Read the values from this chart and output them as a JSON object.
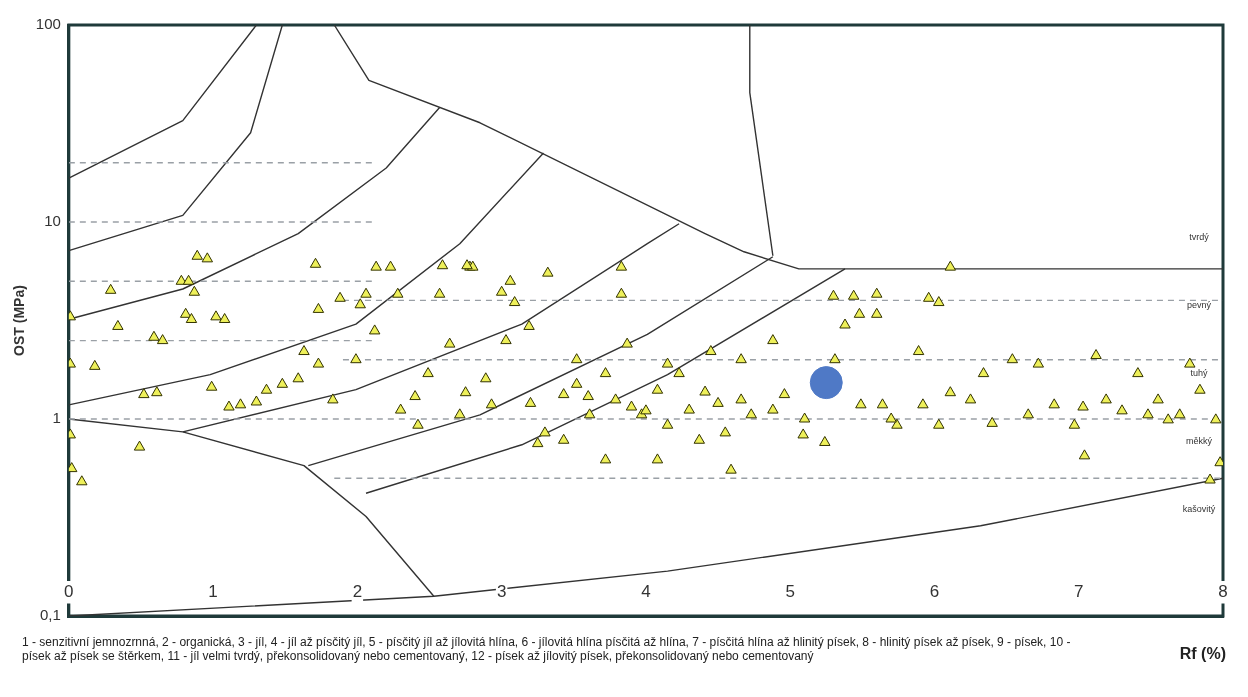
{
  "chart_data": {
    "type": "scatter",
    "ylabel": "OST (MPa)",
    "xlabel": "Rf (%)",
    "log": "y",
    "xlim": [
      0,
      8
    ],
    "ylim": [
      0.1,
      100
    ],
    "xticks": [
      0,
      1,
      2,
      3,
      4,
      5,
      6,
      7,
      8
    ],
    "yticks": [
      {
        "value": 0.1,
        "label": "0,1"
      },
      1,
      10,
      100
    ],
    "grid": false,
    "annotations": [
      "1 - senzitivní jemnozrnná, 2 - organická, 3 - jíl, 4 - jíl až písčitý jíl, 5 - písčitý jíl až jílovitá hlína, 6 - jílovitá hlína písčitá až hlína, 7 - písčitá hlína až hlinitý písek, 8 - hlinitý písek až písek, 9 - písek, 10 - písek až písek se štěrkem, 11 - jíl velmi tvrdý, překonsolidovaný nebo cementovaný, 12 - písek až jílovitý písek, překonsolidovaný nebo cementovaný",
      "tvrdý",
      "pevný",
      "tuhý",
      "měkký",
      "kašovitý"
    ],
    "series": [
      {
        "type": "line",
        "color": "#9aa0a6",
        "line_style": "dashed",
        "marker": "none",
        "x": [
          0,
          2.1
        ],
        "values": [
          20,
          20
        ]
      },
      {
        "type": "line",
        "color": "#9aa0a6",
        "line_style": "dashed",
        "marker": "none",
        "x": [
          0,
          2.1
        ],
        "values": [
          10,
          10
        ]
      },
      {
        "type": "line",
        "color": "#9aa0a6",
        "line_style": "dashed",
        "marker": "none",
        "x": [
          0,
          2.1
        ],
        "values": [
          5,
          5
        ]
      },
      {
        "type": "line",
        "color": "#9aa0a6",
        "line_style": "dashed",
        "marker": "none",
        "x": [
          0,
          2.1
        ],
        "values": [
          2.5,
          2.5
        ]
      },
      {
        "type": "line",
        "color": "#9aa0a6",
        "line_style": "dashed",
        "marker": "none",
        "x": [
          0,
          8
        ],
        "values": [
          1,
          1
        ]
      },
      {
        "type": "line",
        "color": "#9aa0a6",
        "line_style": "dashed",
        "marker": "none",
        "x": [
          1.9,
          8
        ],
        "values": [
          4,
          4
        ]
      },
      {
        "type": "line",
        "color": "#9aa0a6",
        "line_style": "dashed",
        "marker": "none",
        "x": [
          1.9,
          8
        ],
        "values": [
          2,
          2
        ]
      },
      {
        "type": "line",
        "color": "#9aa0a6",
        "line_style": "dashed",
        "marker": "none",
        "x": [
          1.84,
          8
        ],
        "values": [
          0.5,
          0.5
        ]
      },
      {
        "type": "line",
        "color": "#333333",
        "line_style": "solid",
        "marker": "none",
        "x": [
          0,
          0.79,
          1.3
        ],
        "values": [
          16.7,
          32.7,
          100
        ]
      },
      {
        "type": "line",
        "color": "#333333",
        "line_style": "solid",
        "marker": "none",
        "x": [
          0,
          0.79,
          1.26,
          1.48
        ],
        "values": [
          7.15,
          10.8,
          28.4,
          100
        ]
      },
      {
        "type": "line",
        "color": "#333333",
        "line_style": "solid",
        "marker": "none",
        "x": [
          1.84,
          2.08,
          2.85,
          4.41,
          4.68,
          5.06,
          8
        ],
        "values": [
          100,
          52.3,
          31.9,
          8.73,
          7.06,
          5.78,
          5.78
        ]
      },
      {
        "type": "line",
        "color": "#333333",
        "line_style": "solid",
        "marker": "none",
        "x": [
          4.72,
          4.72,
          4.88
        ],
        "values": [
          100,
          45.4,
          6.74
        ]
      },
      {
        "type": "line",
        "color": "#333333",
        "line_style": "solid",
        "marker": "none",
        "x": [
          0,
          0.79,
          1.59,
          2.2,
          2.57
        ],
        "values": [
          3.21,
          4.57,
          8.73,
          18.8,
          38.1
        ]
      },
      {
        "type": "line",
        "color": "#333333",
        "line_style": "solid",
        "marker": "none",
        "x": [
          0,
          0.98,
          1.99,
          2.71,
          3.29
        ],
        "values": [
          1.18,
          1.68,
          3.03,
          7.76,
          22.4
        ]
      },
      {
        "type": "line",
        "color": "#333333",
        "line_style": "solid",
        "marker": "none",
        "x": [
          0.79,
          1.99,
          3.14,
          4.01,
          4.23
        ],
        "values": [
          0.86,
          1.41,
          3.03,
          7.76,
          9.8
        ]
      },
      {
        "type": "line",
        "color": "#333333",
        "line_style": "solid",
        "marker": "none",
        "x": [
          1.66,
          2.85,
          4.01,
          4.88
        ],
        "values": [
          0.58,
          1.05,
          2.69,
          6.66
        ]
      },
      {
        "type": "line",
        "color": "#333333",
        "line_style": "solid",
        "marker": "none",
        "x": [
          2.06,
          3.14,
          4.15,
          5.38
        ],
        "values": [
          0.42,
          0.74,
          1.68,
          5.78
        ]
      },
      {
        "type": "line",
        "color": "#333333",
        "line_style": "solid",
        "marker": "none",
        "x": [
          0,
          0.79,
          1.63,
          2.06,
          2.53
        ],
        "values": [
          1,
          0.86,
          0.58,
          0.32,
          0.126
        ]
      },
      {
        "type": "line",
        "color": "#333333",
        "line_style": "solid",
        "marker": "none",
        "x": [
          0,
          2.53,
          4.15,
          6.32,
          8
        ],
        "values": [
          0.1,
          0.126,
          0.169,
          0.287,
          0.5
        ]
      },
      {
        "color": "#eef05a",
        "marker": "triangle",
        "x": [
          0.01,
          0.01,
          0.01,
          0.02,
          0.09,
          0.18,
          0.29,
          0.34,
          0.49,
          0.52,
          0.59,
          0.61,
          0.65,
          0.78,
          0.81,
          0.83,
          0.85,
          0.89,
          0.96,
          1.02,
          1.08,
          0.99,
          0.87,
          1.11,
          1.19,
          1.3,
          1.37,
          1.48,
          1.59,
          1.63,
          1.73,
          1.71,
          1.73,
          1.83,
          1.99,
          2.02,
          2.13,
          2.12,
          2.28,
          2.3,
          2.42,
          2.49,
          2.57,
          2.64,
          2.71,
          2.75,
          2.78,
          2.8,
          2.89,
          2.93,
          3.03,
          3.06,
          3.09,
          3.19,
          3.25,
          3.32,
          3.43,
          3.52,
          3.61,
          3.72,
          3.79,
          3.83,
          3.87,
          3.97,
          4.08,
          4.15,
          4.23,
          4.3,
          4.41,
          4.45,
          4.55,
          4.66,
          4.73,
          4.88,
          4.88,
          4.96,
          5.09,
          5.31,
          5.38,
          5.49,
          5.6,
          5.64,
          5.74,
          5.89,
          5.92,
          6.03,
          6.11,
          6.25,
          6.34,
          6.54,
          6.65,
          6.72,
          6.83,
          6.97,
          7.04,
          7.12,
          7.19,
          7.41,
          7.48,
          7.55,
          7.62,
          7.7,
          7.77,
          7.84,
          7.91,
          7.95,
          7.98,
          4.59,
          4.66,
          5.24,
          5.6,
          5.96,
          6.03,
          3.43,
          3.72,
          4.15,
          4.37,
          4.08,
          2.23,
          1.88,
          2.06,
          3.83,
          5.3,
          5.44,
          6.11,
          5.48,
          7.03,
          3.0,
          2.59,
          2.76,
          3.52,
          2.4,
          3.2,
          3.6,
          4.0,
          4.5,
          5.1,
          5.7,
          6.4,
          7.3,
          3.9,
          3.3
        ],
        "values": [
          3.3,
          1.9,
          0.83,
          0.56,
          0.48,
          1.85,
          4.5,
          2.95,
          0.72,
          1.33,
          2.6,
          1.36,
          2.5,
          5.0,
          3.4,
          5.0,
          3.2,
          6.7,
          6.5,
          3.3,
          3.2,
          1.45,
          4.4,
          1.15,
          1.18,
          1.22,
          1.4,
          1.5,
          1.6,
          2.2,
          1.9,
          6.1,
          3.6,
          1.25,
          2.0,
          3.8,
          5.9,
          2.8,
          4.3,
          1.11,
          0.93,
          1.7,
          4.3,
          2.4,
          1.05,
          1.36,
          5.9,
          5.9,
          1.6,
          1.18,
          2.5,
          5.0,
          3.9,
          2.95,
          0.75,
          5.5,
          1.33,
          2.0,
          1.05,
          1.7,
          1.25,
          4.3,
          2.4,
          1.05,
          1.4,
          0.93,
          1.7,
          1.11,
          1.37,
          2.2,
          0.85,
          2.0,
          1.05,
          2.5,
          1.11,
          1.33,
          0.83,
          2.0,
          3.0,
          1.18,
          3.4,
          1.18,
          0.93,
          2.2,
          1.18,
          0.93,
          1.36,
          1.25,
          1.7,
          2.0,
          1.05,
          1.9,
          1.18,
          0.93,
          0.65,
          2.1,
          1.25,
          1.7,
          1.05,
          1.25,
          0.99,
          1.05,
          1.9,
          1.4,
          0.49,
          0.99,
          0.6,
          0.55,
          1.25,
          0.76,
          4.3,
          4.1,
          3.9,
          0.78,
          0.62,
          1.9,
          0.78,
          0.62,
          5.9,
          4.1,
          4.3,
          5.9,
          4.2,
          4.2,
          5.9,
          3.4,
          1.15,
          4.4,
          6.0,
          6.0,
          1.5,
          1.3,
          1.2,
          1.3,
          1.1,
          1.2,
          1.0,
          1.0,
          0.95,
          1.1,
          1.15,
          0.85
        ]
      },
      {
        "color": "#4f79c6",
        "marker": "circle",
        "x": [
          5.25
        ],
        "values": [
          1.53
        ]
      }
    ]
  }
}
